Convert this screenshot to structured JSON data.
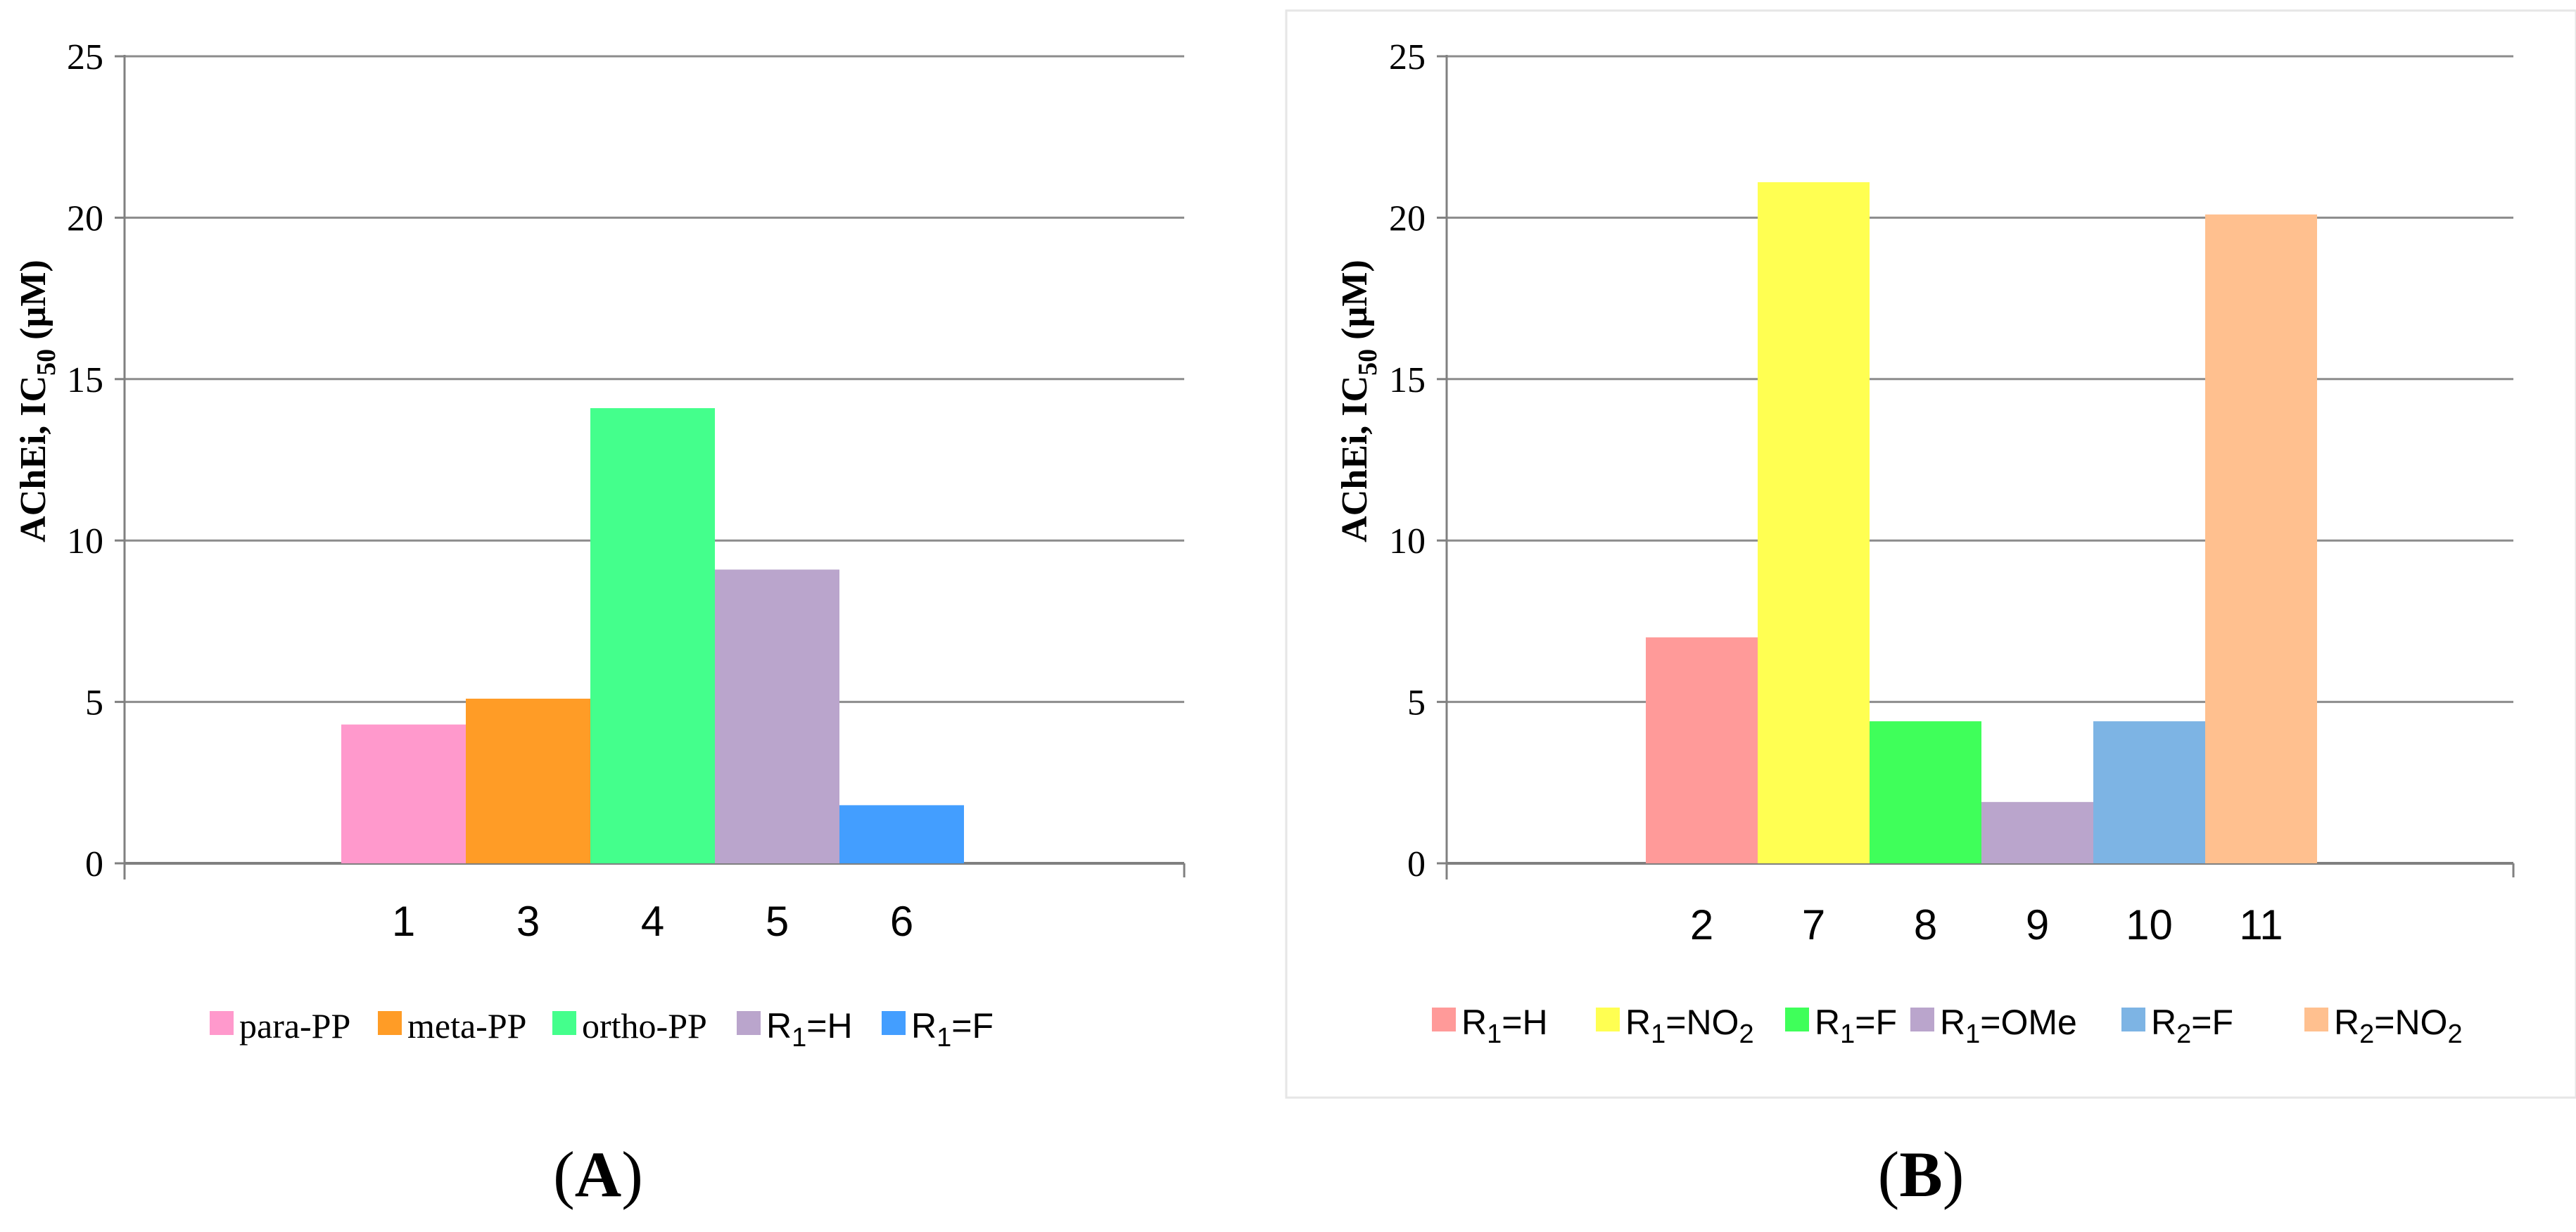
{
  "chart_data": [
    {
      "type": "bar",
      "panel": "A",
      "ylabel": "AChEi, IC50 (µM)",
      "ylim": [
        0,
        25
      ],
      "yticks": [
        0,
        5,
        10,
        15,
        20,
        25
      ],
      "grid": true,
      "categories": [
        "1",
        "3",
        "4",
        "5",
        "6"
      ],
      "values": [
        4.3,
        5.1,
        14.1,
        9.1,
        1.8
      ],
      "colors": [
        "#ff99cc",
        "#ff9c26",
        "#44ff8c",
        "#baa5cc",
        "#439eff"
      ],
      "legend": [
        {
          "label": "para-PP",
          "color": "#ff99cc"
        },
        {
          "label": "meta-PP",
          "color": "#ff9c26"
        },
        {
          "label": "ortho-PP",
          "color": "#44ff8c"
        },
        {
          "label": "R1=H",
          "color": "#baa5cc"
        },
        {
          "label": "R1=F",
          "color": "#439eff"
        }
      ],
      "legend_placement": "bottom"
    },
    {
      "type": "bar",
      "panel": "B",
      "ylabel": "AChEi, IC50 (µM)",
      "ylim": [
        0,
        25
      ],
      "yticks": [
        0,
        5,
        10,
        15,
        20,
        25
      ],
      "grid": true,
      "categories": [
        "2",
        "7",
        "8",
        "9",
        "10",
        "11"
      ],
      "values": [
        7.0,
        21.1,
        4.4,
        1.9,
        4.4,
        20.1
      ],
      "colors": [
        "#ff9a99",
        "#ffff52",
        "#3fff5a",
        "#baa5cc",
        "#7db4e4",
        "#ffc08f"
      ],
      "legend": [
        {
          "label": "R1=H",
          "color": "#ff9a99"
        },
        {
          "label": "R1=NO2",
          "color": "#ffff52"
        },
        {
          "label": "R1=F",
          "color": "#3fff5a"
        },
        {
          "label": "R1=OMe",
          "color": "#baa5cc"
        },
        {
          "label": "R2=F",
          "color": "#7db4e4"
        },
        {
          "label": "R2=NO2",
          "color": "#ffc08f"
        }
      ],
      "legend_placement": "bottom"
    }
  ]
}
